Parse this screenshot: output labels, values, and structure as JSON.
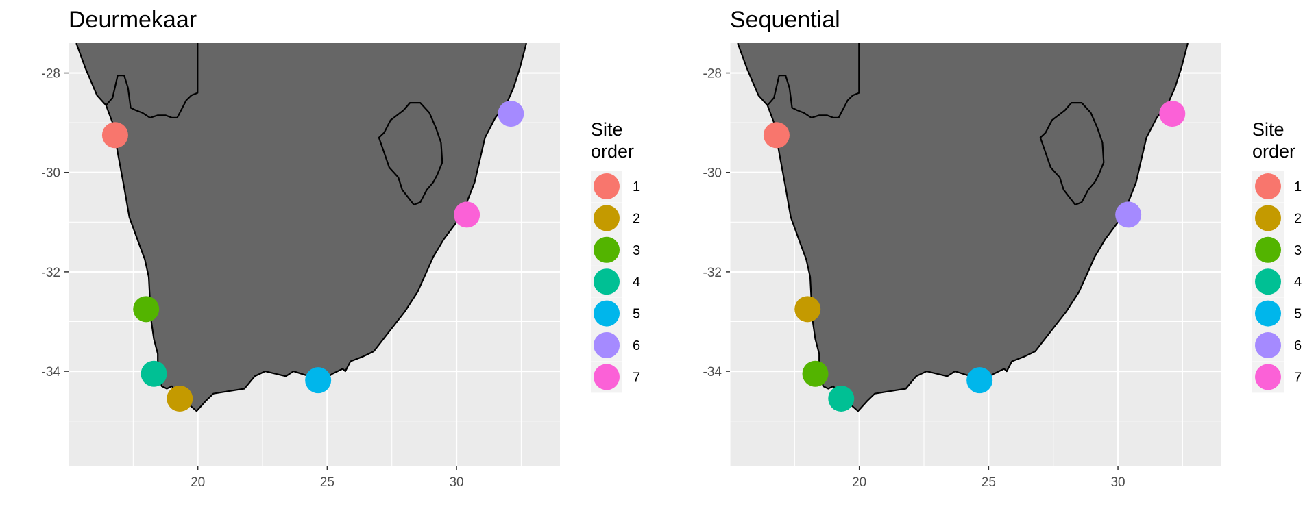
{
  "chart_data": [
    {
      "type": "scatter",
      "title": "Deurmekaar",
      "xlabel": "",
      "ylabel": "",
      "xlim": [
        15,
        34
      ],
      "ylim": [
        -35.9,
        -27.4
      ],
      "x_ticks": [
        20,
        25,
        30
      ],
      "y_ticks": [
        -28,
        -30,
        -32,
        -34
      ],
      "grid": true,
      "legend": {
        "title": [
          "Site",
          "order"
        ],
        "position": "right",
        "entries": [
          "1",
          "2",
          "3",
          "4",
          "5",
          "6",
          "7"
        ]
      },
      "points": [
        {
          "order": "1",
          "lon": 16.8,
          "lat": -29.25
        },
        {
          "order": "2",
          "lon": 19.3,
          "lat": -34.55
        },
        {
          "order": "3",
          "lon": 18.0,
          "lat": -32.75
        },
        {
          "order": "4",
          "lon": 18.3,
          "lat": -34.05
        },
        {
          "order": "5",
          "lon": 24.65,
          "lat": -34.18
        },
        {
          "order": "6",
          "lon": 32.1,
          "lat": -28.82
        },
        {
          "order": "7",
          "lon": 30.4,
          "lat": -30.85
        }
      ]
    },
    {
      "type": "scatter",
      "title": "Sequential",
      "xlabel": "",
      "ylabel": "",
      "xlim": [
        15,
        34
      ],
      "ylim": [
        -35.9,
        -27.4
      ],
      "x_ticks": [
        20,
        25,
        30
      ],
      "y_ticks": [
        -28,
        -30,
        -32,
        -34
      ],
      "grid": true,
      "legend": {
        "title": [
          "Site",
          "order"
        ],
        "position": "right",
        "entries": [
          "1",
          "2",
          "3",
          "4",
          "5",
          "6",
          "7"
        ]
      },
      "points": [
        {
          "order": "1",
          "lon": 16.8,
          "lat": -29.25
        },
        {
          "order": "2",
          "lon": 18.0,
          "lat": -32.75
        },
        {
          "order": "3",
          "lon": 18.3,
          "lat": -34.05
        },
        {
          "order": "4",
          "lon": 19.3,
          "lat": -34.55
        },
        {
          "order": "5",
          "lon": 24.65,
          "lat": -34.18
        },
        {
          "order": "6",
          "lon": 30.4,
          "lat": -30.85
        },
        {
          "order": "7",
          "lon": 32.1,
          "lat": -28.82
        }
      ]
    }
  ],
  "colors": {
    "panel_background": "#ebebeb",
    "grid": "#ffffff",
    "land_fill": "#666666",
    "land_outline": "#000000",
    "legend_key_background": "#f2f2f2",
    "order_palette": [
      "#F8766D",
      "#C49A00",
      "#53B400",
      "#00C094",
      "#00B6EB",
      "#A58AFF",
      "#FB61D7"
    ]
  },
  "map": {
    "land": "Southern Africa coastline with Lesotho outline",
    "coastline": [
      [
        15.3,
        -27.4
      ],
      [
        15.65,
        -27.9
      ],
      [
        16.1,
        -28.45
      ],
      [
        16.45,
        -28.65
      ],
      [
        16.7,
        -29.0
      ],
      [
        16.9,
        -29.6
      ],
      [
        17.15,
        -30.3
      ],
      [
        17.35,
        -30.9
      ],
      [
        17.7,
        -31.4
      ],
      [
        17.95,
        -31.75
      ],
      [
        18.1,
        -32.1
      ],
      [
        18.15,
        -32.6
      ],
      [
        18.2,
        -33.0
      ],
      [
        18.3,
        -33.35
      ],
      [
        18.45,
        -33.65
      ],
      [
        18.45,
        -34.0
      ],
      [
        18.6,
        -34.3
      ],
      [
        18.8,
        -34.35
      ],
      [
        19.0,
        -34.3
      ],
      [
        19.2,
        -34.45
      ],
      [
        19.5,
        -34.6
      ],
      [
        19.95,
        -34.8
      ],
      [
        20.3,
        -34.6
      ],
      [
        20.6,
        -34.45
      ],
      [
        21.2,
        -34.4
      ],
      [
        21.8,
        -34.35
      ],
      [
        22.2,
        -34.1
      ],
      [
        22.6,
        -34.0
      ],
      [
        23.0,
        -34.05
      ],
      [
        23.4,
        -34.1
      ],
      [
        23.7,
        -34.0
      ],
      [
        24.3,
        -34.1
      ],
      [
        24.8,
        -34.2
      ],
      [
        25.2,
        -34.05
      ],
      [
        25.6,
        -33.95
      ],
      [
        25.7,
        -34.0
      ],
      [
        25.9,
        -33.8
      ],
      [
        26.4,
        -33.7
      ],
      [
        26.8,
        -33.6
      ],
      [
        27.4,
        -33.2
      ],
      [
        28.0,
        -32.8
      ],
      [
        28.5,
        -32.4
      ],
      [
        29.1,
        -31.7
      ],
      [
        29.5,
        -31.35
      ],
      [
        30.0,
        -31.0
      ],
      [
        30.4,
        -30.6
      ],
      [
        30.7,
        -30.2
      ],
      [
        30.9,
        -29.75
      ],
      [
        31.1,
        -29.3
      ],
      [
        31.5,
        -28.9
      ],
      [
        31.95,
        -28.6
      ],
      [
        32.2,
        -28.3
      ],
      [
        32.45,
        -27.9
      ],
      [
        32.7,
        -27.4
      ]
    ],
    "namibia_border": [
      [
        19.99,
        -27.4
      ],
      [
        19.99,
        -28.4
      ],
      [
        19.75,
        -28.45
      ],
      [
        19.55,
        -28.55
      ],
      [
        19.35,
        -28.75
      ],
      [
        19.2,
        -28.9
      ],
      [
        19.0,
        -28.9
      ],
      [
        18.75,
        -28.85
      ],
      [
        18.45,
        -28.85
      ],
      [
        18.15,
        -28.9
      ],
      [
        17.85,
        -28.8
      ],
      [
        17.6,
        -28.75
      ],
      [
        17.4,
        -28.7
      ],
      [
        17.3,
        -28.3
      ],
      [
        17.15,
        -28.05
      ],
      [
        16.9,
        -28.05
      ],
      [
        16.7,
        -28.5
      ],
      [
        16.45,
        -28.65
      ]
    ],
    "lesotho": [
      [
        28.6,
        -28.6
      ],
      [
        28.95,
        -28.8
      ],
      [
        29.2,
        -29.1
      ],
      [
        29.4,
        -29.4
      ],
      [
        29.45,
        -29.8
      ],
      [
        29.25,
        -30.05
      ],
      [
        29.1,
        -30.2
      ],
      [
        28.85,
        -30.35
      ],
      [
        28.6,
        -30.6
      ],
      [
        28.35,
        -30.65
      ],
      [
        27.9,
        -30.35
      ],
      [
        27.75,
        -30.1
      ],
      [
        27.4,
        -29.9
      ],
      [
        27.2,
        -29.6
      ],
      [
        27.0,
        -29.3
      ],
      [
        27.2,
        -29.2
      ],
      [
        27.45,
        -28.95
      ],
      [
        27.7,
        -28.85
      ],
      [
        27.95,
        -28.75
      ],
      [
        28.2,
        -28.6
      ]
    ]
  }
}
